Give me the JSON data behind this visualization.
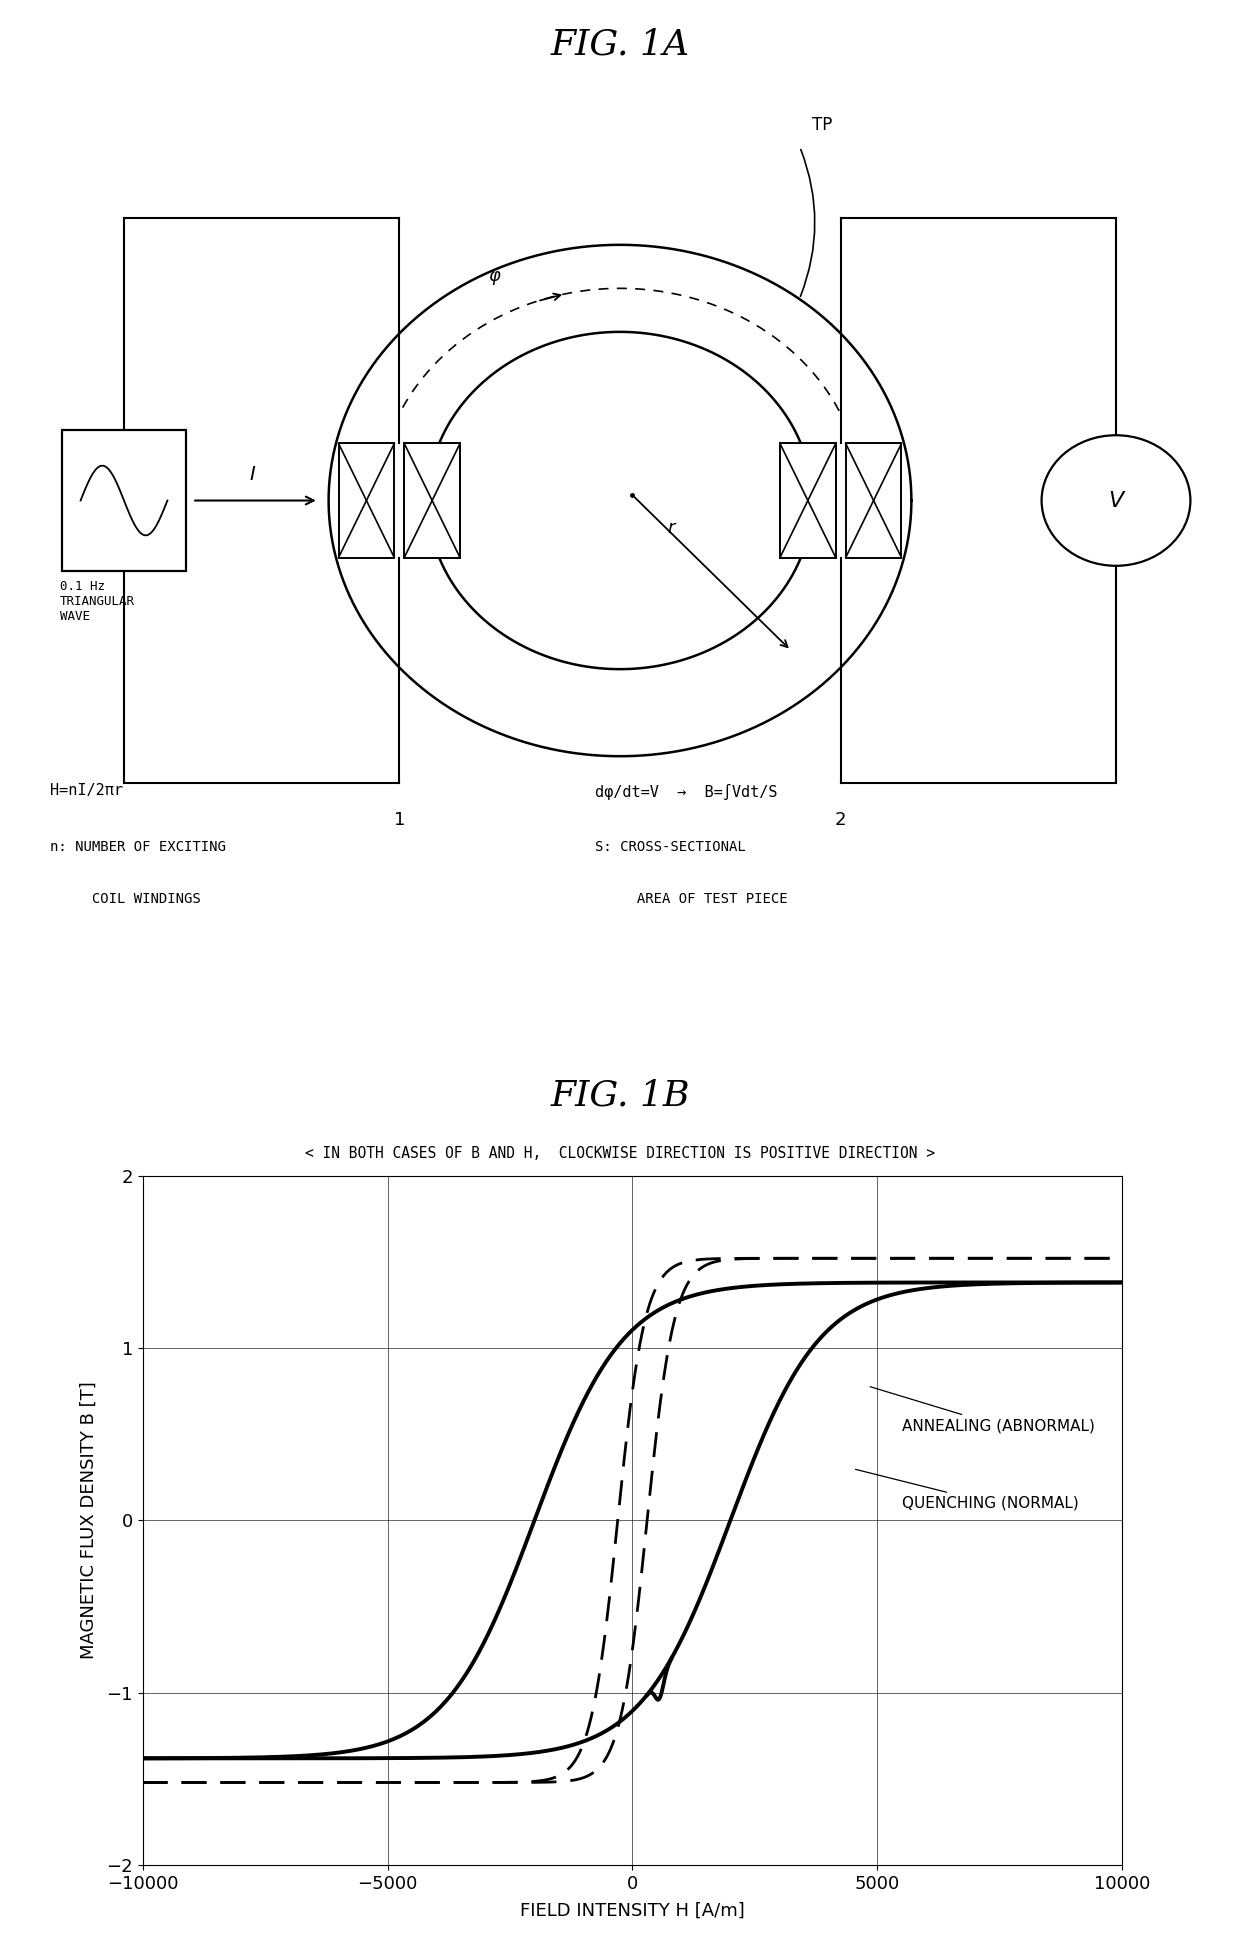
{
  "fig_title_A": "FIG. 1A",
  "fig_title_B": "FIG. 1B",
  "subtitle": "< IN BOTH CASES OF B AND H,  CLOCKWISE DIRECTION IS POSITIVE DIRECTION >",
  "xlabel": "FIELD INTENSITY H [A/m]",
  "ylabel": "MAGNETIC FLUX DENSITY B [T]",
  "xlim": [
    -10000,
    10000
  ],
  "ylim": [
    -2,
    2
  ],
  "xticks": [
    -10000,
    -5000,
    0,
    5000,
    10000
  ],
  "yticks": [
    -2,
    -1,
    0,
    1,
    2
  ],
  "formula_left_1": "H=nI/2πr",
  "formula_left_2": "n: NUMBER OF EXCITING",
  "formula_left_3": "     COIL WINDINGS",
  "formula_right_1": "dφ/dt=V  →  B=∫Vdt/S",
  "formula_right_2": "S: CROSS-SECTIONAL",
  "formula_right_3": "     AREA OF TEST PIECE",
  "label_annealing": "ANNEALING (ABNORMAL)",
  "label_quenching": "QUENCHING (NORMAL)",
  "label_tp": "TP",
  "label_1": "1",
  "label_2": "2",
  "label_phi": "φ",
  "label_r": "r",
  "label_I": "I",
  "label_wave": "0.1 Hz\nTRIANGULAR\nWAVE",
  "background_color": "#ffffff",
  "line_color": "#000000"
}
